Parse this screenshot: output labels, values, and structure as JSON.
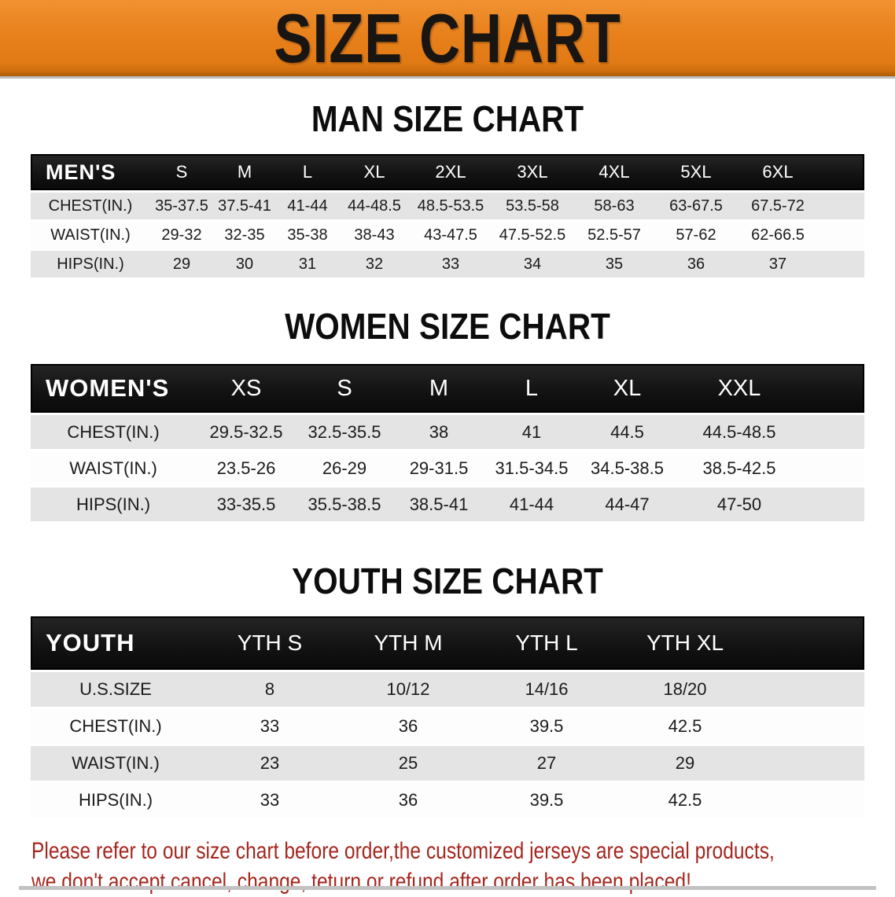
{
  "banner": {
    "title": "SIZE CHART"
  },
  "colors": {
    "banner_orange": "#e8811c",
    "banner_bottom_edge": "#aa5a07",
    "header_bar_black": "#131313",
    "header_text_white": "#ffffff",
    "row_gray": "#e4e4e4",
    "row_white": "#fdfdfd",
    "heading_black": "#0d0d0d",
    "disclaimer_red": "#a5261e"
  },
  "sections": [
    {
      "heading": "MAN SIZE CHART",
      "table": {
        "header_label": "MEN'S",
        "sizes": [
          "S",
          "M",
          "L",
          "XL",
          "2XL",
          "3XL",
          "4XL",
          "5XL",
          "6XL"
        ],
        "rows": [
          {
            "label": "CHEST(IN.)",
            "values": [
              "35-37.5",
              "37.5-41",
              "41-44",
              "44-48.5",
              "48.5-53.5",
              "53.5-58",
              "58-63",
              "63-67.5",
              "67.5-72"
            ]
          },
          {
            "label": "WAIST(IN.)",
            "values": [
              "29-32",
              "32-35",
              "35-38",
              "38-43",
              "43-47.5",
              "47.5-52.5",
              "52.5-57",
              "57-62",
              "62-66.5"
            ]
          },
          {
            "label": "HIPS(IN.)",
            "values": [
              "29",
              "30",
              "31",
              "32",
              "33",
              "34",
              "35",
              "36",
              "37"
            ]
          }
        ]
      }
    },
    {
      "heading": "WOMEN SIZE CHART",
      "table": {
        "header_label": "WOMEN'S",
        "sizes": [
          "XS",
          "S",
          "M",
          "L",
          "XL",
          "XXL"
        ],
        "rows": [
          {
            "label": "CHEST(IN.)",
            "values": [
              "29.5-32.5",
              "32.5-35.5",
              "38",
              "41",
              "44.5",
              "44.5-48.5"
            ]
          },
          {
            "label": "WAIST(IN.)",
            "values": [
              "23.5-26",
              "26-29",
              "29-31.5",
              "31.5-34.5",
              "34.5-38.5",
              "38.5-42.5"
            ]
          },
          {
            "label": "HIPS(IN.)",
            "values": [
              "33-35.5",
              "35.5-38.5",
              "38.5-41",
              "41-44",
              "44-47",
              "47-50"
            ]
          }
        ]
      }
    },
    {
      "heading": "YOUTH SIZE CHART",
      "table": {
        "header_label": "YOUTH",
        "sizes": [
          "YTH S",
          "YTH M",
          "YTH L",
          "YTH XL"
        ],
        "rows": [
          {
            "label": "U.S.SIZE",
            "values": [
              "8",
              "10/12",
              "14/16",
              "18/20"
            ]
          },
          {
            "label": "CHEST(IN.)",
            "values": [
              "33",
              "36",
              "39.5",
              "42.5"
            ]
          },
          {
            "label": "WAIST(IN.)",
            "values": [
              "23",
              "25",
              "27",
              "29"
            ]
          },
          {
            "label": "HIPS(IN.)",
            "values": [
              "33",
              "36",
              "39.5",
              "42.5"
            ]
          }
        ]
      }
    }
  ],
  "disclaimer": {
    "line1": "Please refer to our size chart before order,the customized jerseys are special products,",
    "line2": "we don't accept cancel, change, teturn or refund after order has been placed!"
  }
}
